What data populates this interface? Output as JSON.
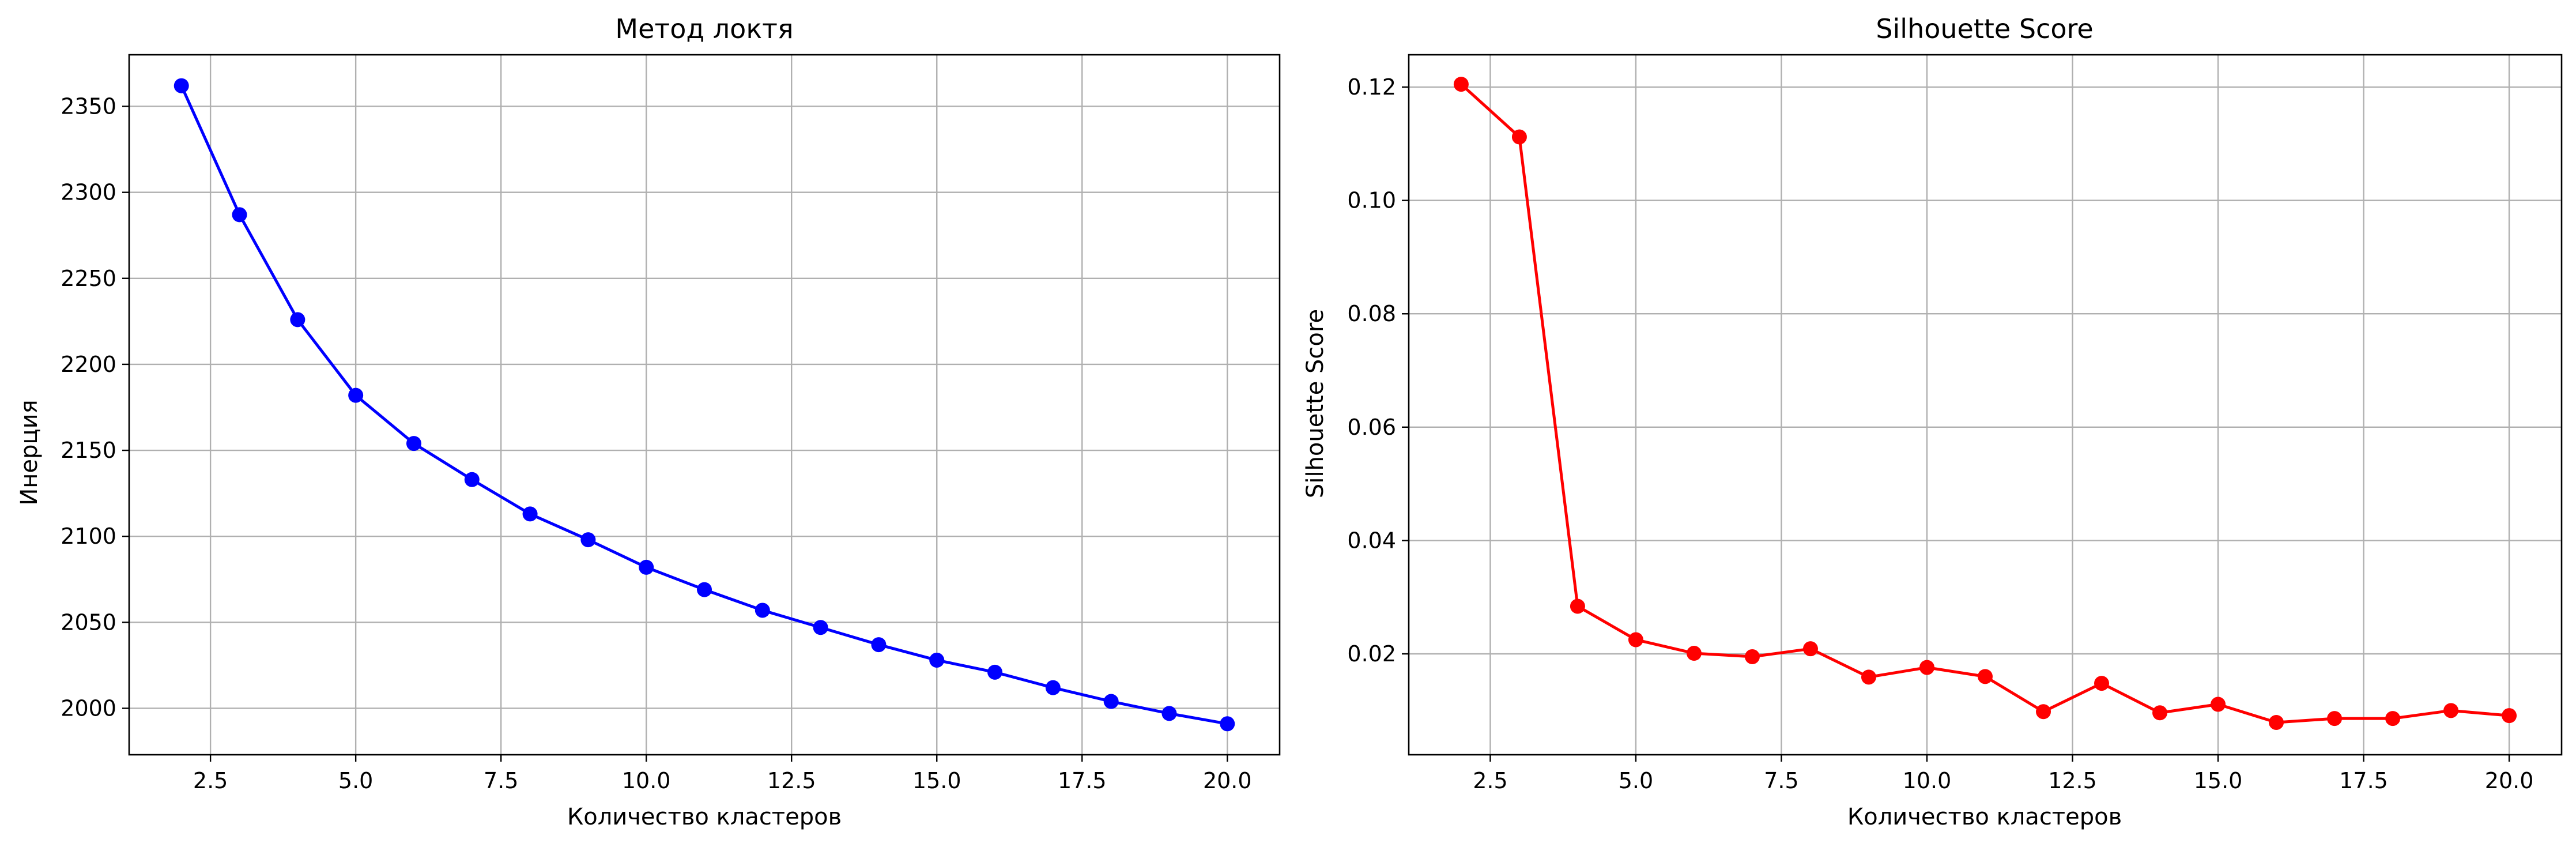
{
  "chart_data": [
    {
      "type": "line",
      "title": "Метод локтя",
      "xlabel": "Количество кластеров",
      "ylabel": "Инерция",
      "color": "#0000ff",
      "grid": true,
      "xlim": [
        1.1,
        20.9
      ],
      "ylim": [
        1973,
        2380
      ],
      "xticks": [
        "2.5",
        "5.0",
        "7.5",
        "10.0",
        "12.5",
        "15.0",
        "17.5",
        "20.0"
      ],
      "yticks": [
        "2000",
        "2050",
        "2100",
        "2150",
        "2200",
        "2250",
        "2300",
        "2350"
      ],
      "x": [
        2,
        3,
        4,
        5,
        6,
        7,
        8,
        9,
        10,
        11,
        12,
        13,
        14,
        15,
        16,
        17,
        18,
        19,
        20
      ],
      "y": [
        2362,
        2287,
        2226,
        2182,
        2154,
        2133,
        2113,
        2098,
        2082,
        2069,
        2057,
        2047,
        2037,
        2028,
        2021,
        2012,
        2004,
        1997,
        1991
      ]
    },
    {
      "type": "line",
      "title": "Silhouette Score",
      "xlabel": "Количество кластеров",
      "ylabel": "Silhouette Score",
      "color": "#ff0000",
      "grid": true,
      "xlim": [
        1.1,
        20.9
      ],
      "ylim": [
        0.0022,
        0.1257
      ],
      "xticks": [
        "2.5",
        "5.0",
        "7.5",
        "10.0",
        "12.5",
        "15.0",
        "17.5",
        "20.0"
      ],
      "yticks": [
        "0.02",
        "0.04",
        "0.06",
        "0.08",
        "0.10",
        "0.12"
      ],
      "x": [
        2,
        3,
        4,
        5,
        6,
        7,
        8,
        9,
        10,
        11,
        12,
        13,
        14,
        15,
        16,
        17,
        18,
        19,
        20
      ],
      "y": [
        0.1205,
        0.1112,
        0.0284,
        0.0225,
        0.0201,
        0.0195,
        0.0209,
        0.0159,
        0.0176,
        0.016,
        0.0098,
        0.0148,
        0.0096,
        0.0111,
        0.0079,
        0.0086,
        0.0086,
        0.01,
        0.0091
      ]
    }
  ]
}
